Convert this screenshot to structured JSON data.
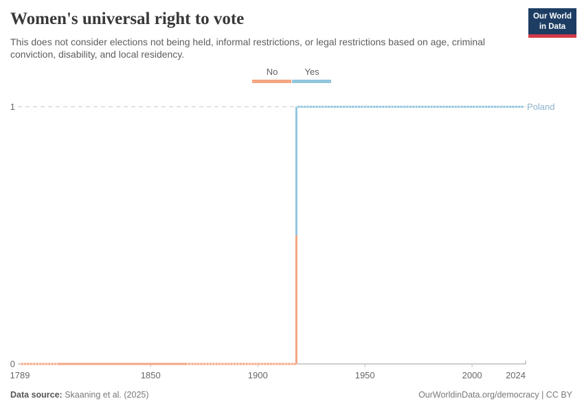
{
  "header": {
    "title": "Women's universal right to vote",
    "subtitle": "This does not consider elections not being held, informal restrictions, or legal restrictions based on age, criminal conviction, disability, and local residency.",
    "logo": {
      "line1": "Our World",
      "line2": "in Data"
    }
  },
  "legend": {
    "items": [
      {
        "label": "No",
        "color": "#F4A582"
      },
      {
        "label": "Yes",
        "color": "#92C5DE"
      }
    ]
  },
  "chart_data": {
    "type": "line",
    "subtype": "step",
    "title": "Women's universal right to vote",
    "entity": "Poland",
    "x": {
      "min": 1789,
      "max": 2024,
      "ticks": [
        1789,
        1850,
        1900,
        1950,
        2000,
        2024
      ]
    },
    "y": {
      "min": 0,
      "max": 1,
      "ticks": [
        0,
        1
      ],
      "dashed_gridline_at": 1
    },
    "legend_position": "top-center",
    "series": [
      {
        "name": "Poland",
        "points": [
          [
            1789,
            0
          ],
          [
            1918,
            0
          ],
          [
            1918,
            1
          ],
          [
            2024,
            1
          ]
        ]
      }
    ],
    "transition_year": 1918,
    "segments": [
      {
        "from": 1789,
        "to": 1918,
        "value": 0,
        "label": "No",
        "color": "#F4A582"
      },
      {
        "from": 1918,
        "to": 2024,
        "value": 1,
        "label": "Yes",
        "color": "#92C5DE"
      }
    ],
    "dotted_year_ranges": [
      {
        "from": 1789,
        "to": 1807,
        "value": 0
      },
      {
        "from": 1867,
        "to": 1918,
        "value": 0
      },
      {
        "from": 1918,
        "to": 2024,
        "value": 1
      }
    ]
  },
  "colors": {
    "no": "#F4A582",
    "yes": "#92C5DE",
    "entity_label": "#8CB1CC",
    "axis_line": "#9c9c9c",
    "tick_mark": "#bdbdbd",
    "gridline": "#c9c9c9",
    "axis_text": "#666666",
    "logo_bg": "#1D3D63",
    "logo_accent": "#D23B47"
  },
  "footer": {
    "source_label": "Data source:",
    "source_value": " Skaaning et al. (2025)",
    "license": "OurWorldinData.org/democracy | CC BY"
  }
}
